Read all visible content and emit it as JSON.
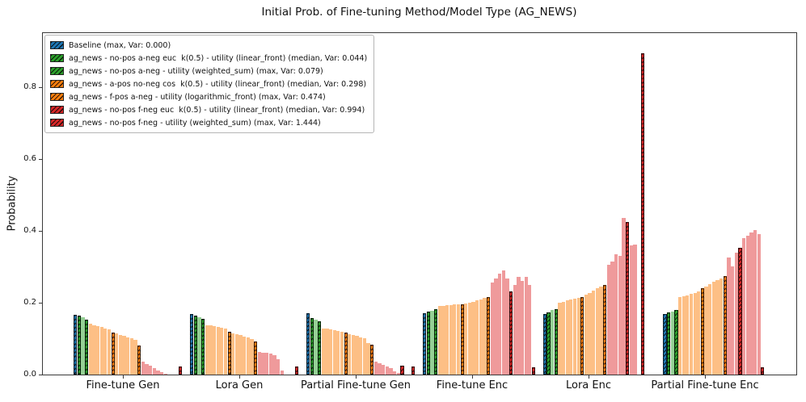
{
  "title": "Initial Prob. of Fine-tuning Method/Model Type (AG_NEWS)",
  "axes": {
    "ylabel": "Probability",
    "yticks": [
      {
        "label": "0.0",
        "value": 0.0
      },
      {
        "label": "0.2",
        "value": 0.2
      },
      {
        "label": "0.4",
        "value": 0.4
      },
      {
        "label": "0.6",
        "value": 0.6
      },
      {
        "label": "0.8",
        "value": 0.8
      }
    ]
  },
  "colors": {
    "blue": "#1f77b4",
    "green": "#2ca02c",
    "green_light": "#95d095",
    "orange": "#ff7f0e",
    "orange_light": "#fdbf85",
    "red": "#d62728",
    "red_light": "#ef9a9b",
    "spine": "#3a3a3a"
  },
  "legend": {
    "items": [
      {
        "label": "Baseline (max, Var: 0.000)",
        "color": "#1f77b4",
        "hatch": "///"
      },
      {
        "label": "ag_news - no-pos a-neg euc  k(0.5) - utility (linear_front) (median, Var: 0.044)",
        "color": "#2ca02c",
        "hatch": "///"
      },
      {
        "label": "ag_news - no-pos a-neg - utility (weighted_sum) (max, Var: 0.079)",
        "color": "#2ca02c",
        "hatch": "///"
      },
      {
        "label": "ag_news - a-pos no-neg cos  k(0.5) - utility (linear_front) (median, Var: 0.298)",
        "color": "#ff7f0e",
        "hatch": "///"
      },
      {
        "label": "ag_news - f-pos a-neg - utility (logarithmic_front) (max, Var: 0.474)",
        "color": "#ff7f0e",
        "hatch": "///"
      },
      {
        "label": "ag_news - no-pos f-neg euc  k(0.5) - utility (linear_front) (median, Var: 0.994)",
        "color": "#d62728",
        "hatch": "///"
      },
      {
        "label": "ag_news - no-pos f-neg - utility (weighted_sum) (max, Var: 1.444)",
        "color": "#d62728",
        "hatch": "///"
      }
    ],
    "position": "upper left"
  },
  "chart_data": {
    "type": "bar",
    "title": "Initial Prob. of Fine-tuning Method/Model Type (AG_NEWS)",
    "xlabel": "",
    "ylabel": "Probability",
    "ylim": [
      0,
      0.953
    ],
    "grid": false,
    "legend_position": "upper left",
    "bar_key_legend": {
      "B": "baseline (blue, hatched)",
      "Gh": "a-neg highlighted run (green, hatched)",
      "G": "a-neg run (light green)",
      "Oh": "a-pos/f-pos highlighted run (orange, hatched)",
      "O": "a-pos/f-pos run (light orange)",
      "Rh": "f-neg highlighted run (red, hatched)",
      "P": "f-neg run (light red)",
      "Z": "empty slot (probability ~0)"
    },
    "categories": [
      "Fine-tune Gen",
      "Lora Gen",
      "Partial Fine-tune Gen",
      "Fine-tune Enc",
      "Lora Enc",
      "Partial Fine-tune Enc"
    ],
    "groups": [
      {
        "category": "Fine-tune Gen",
        "bars": [
          [
            "B",
            0.167
          ],
          [
            "Gh",
            0.164
          ],
          [
            "G",
            0.16
          ],
          [
            "Gh",
            0.152
          ],
          [
            "O",
            0.141
          ],
          [
            "O",
            0.138
          ],
          [
            "O",
            0.135
          ],
          [
            "O",
            0.132
          ],
          [
            "O",
            0.129
          ],
          [
            "O",
            0.126
          ],
          [
            "Oh",
            0.117
          ],
          [
            "O",
            0.114
          ],
          [
            "O",
            0.111
          ],
          [
            "O",
            0.108
          ],
          [
            "O",
            0.104
          ],
          [
            "O",
            0.1
          ],
          [
            "O",
            0.097
          ],
          [
            "Oh",
            0.081
          ],
          [
            "P",
            0.035
          ],
          [
            "P",
            0.03
          ],
          [
            "P",
            0.024
          ],
          [
            "P",
            0.018
          ],
          [
            "P",
            0.012
          ],
          [
            "P",
            0.006
          ],
          [
            "P",
            0.002
          ],
          [
            "Z",
            0
          ],
          [
            "Z",
            0
          ],
          [
            "Z",
            0
          ],
          [
            "Rh",
            0.022
          ],
          [
            "Z",
            0
          ]
        ]
      },
      {
        "category": "Lora Gen",
        "bars": [
          [
            "B",
            0.168
          ],
          [
            "Gh",
            0.165
          ],
          [
            "G",
            0.16
          ],
          [
            "Gh",
            0.154
          ],
          [
            "O",
            0.138
          ],
          [
            "O",
            0.136
          ],
          [
            "O",
            0.134
          ],
          [
            "O",
            0.132
          ],
          [
            "O",
            0.13
          ],
          [
            "O",
            0.128
          ],
          [
            "Oh",
            0.118
          ],
          [
            "O",
            0.115
          ],
          [
            "O",
            0.112
          ],
          [
            "O",
            0.109
          ],
          [
            "O",
            0.106
          ],
          [
            "O",
            0.103
          ],
          [
            "O",
            0.099
          ],
          [
            "Oh",
            0.093
          ],
          [
            "P",
            0.062
          ],
          [
            "P",
            0.061
          ],
          [
            "P",
            0.06
          ],
          [
            "P",
            0.059
          ],
          [
            "P",
            0.055
          ],
          [
            "P",
            0.043
          ],
          [
            "P",
            0.012
          ],
          [
            "Z",
            0
          ],
          [
            "Z",
            0
          ],
          [
            "Z",
            0
          ],
          [
            "Rh",
            0.022
          ],
          [
            "Z",
            0
          ]
        ]
      },
      {
        "category": "Partial Fine-tune Gen",
        "bars": [
          [
            "B",
            0.17
          ],
          [
            "Gh",
            0.157
          ],
          [
            "G",
            0.153
          ],
          [
            "Gh",
            0.148
          ],
          [
            "O",
            0.129
          ],
          [
            "O",
            0.127
          ],
          [
            "O",
            0.125
          ],
          [
            "O",
            0.123
          ],
          [
            "O",
            0.121
          ],
          [
            "O",
            0.119
          ],
          [
            "Oh",
            0.116
          ],
          [
            "O",
            0.113
          ],
          [
            "O",
            0.11
          ],
          [
            "O",
            0.107
          ],
          [
            "O",
            0.104
          ],
          [
            "O",
            0.1
          ],
          [
            "O",
            0.088
          ],
          [
            "Oh",
            0.084
          ],
          [
            "P",
            0.035
          ],
          [
            "P",
            0.031
          ],
          [
            "P",
            0.027
          ],
          [
            "P",
            0.022
          ],
          [
            "P",
            0.017
          ],
          [
            "P",
            0.01
          ],
          [
            "P",
            0.004
          ],
          [
            "Rh",
            0.025
          ],
          [
            "Z",
            0
          ],
          [
            "Z",
            0
          ],
          [
            "Rh",
            0.022
          ],
          [
            "Z",
            0
          ]
        ]
      },
      {
        "category": "Fine-tune Enc",
        "bars": [
          [
            "B",
            0.17
          ],
          [
            "Gh",
            0.175
          ],
          [
            "G",
            0.177
          ],
          [
            "Gh",
            0.181
          ],
          [
            "O",
            0.19
          ],
          [
            "O",
            0.191
          ],
          [
            "O",
            0.193
          ],
          [
            "O",
            0.194
          ],
          [
            "O",
            0.195
          ],
          [
            "O",
            0.196
          ],
          [
            "Oh",
            0.196
          ],
          [
            "O",
            0.198
          ],
          [
            "O",
            0.2
          ],
          [
            "O",
            0.203
          ],
          [
            "O",
            0.206
          ],
          [
            "O",
            0.21
          ],
          [
            "O",
            0.214
          ],
          [
            "Oh",
            0.216
          ],
          [
            "P",
            0.256
          ],
          [
            "P",
            0.267
          ],
          [
            "P",
            0.282
          ],
          [
            "P",
            0.291
          ],
          [
            "P",
            0.267
          ],
          [
            "Rh",
            0.231
          ],
          [
            "P",
            0.249
          ],
          [
            "P",
            0.271
          ],
          [
            "P",
            0.26
          ],
          [
            "P",
            0.271
          ],
          [
            "P",
            0.249
          ],
          [
            "Rh",
            0.02
          ]
        ]
      },
      {
        "category": "Lora Enc",
        "bars": [
          [
            "Z",
            0
          ],
          [
            "B",
            0.168
          ],
          [
            "Gh",
            0.174
          ],
          [
            "G",
            0.179
          ],
          [
            "Gh",
            0.183
          ],
          [
            "O",
            0.2
          ],
          [
            "O",
            0.203
          ],
          [
            "O",
            0.206
          ],
          [
            "O",
            0.209
          ],
          [
            "O",
            0.212
          ],
          [
            "O",
            0.214
          ],
          [
            "Oh",
            0.215
          ],
          [
            "O",
            0.222
          ],
          [
            "O",
            0.228
          ],
          [
            "O",
            0.234
          ],
          [
            "O",
            0.24
          ],
          [
            "O",
            0.244
          ],
          [
            "Oh",
            0.249
          ],
          [
            "P",
            0.305
          ],
          [
            "P",
            0.315
          ],
          [
            "P",
            0.335
          ],
          [
            "P",
            0.33
          ],
          [
            "P",
            0.436
          ],
          [
            "Rh",
            0.425
          ],
          [
            "P",
            0.36
          ],
          [
            "P",
            0.362
          ],
          [
            "Z",
            0
          ],
          [
            "Rh",
            0.895
          ],
          [
            "Z",
            0
          ],
          [
            "Z",
            0
          ]
        ]
      },
      {
        "category": "Partial Fine-tune Enc",
        "bars": [
          [
            "Z",
            0
          ],
          [
            "Z",
            0
          ],
          [
            "B",
            0.168
          ],
          [
            "Gh",
            0.172
          ],
          [
            "G",
            0.176
          ],
          [
            "Gh",
            0.179
          ],
          [
            "O",
            0.215
          ],
          [
            "O",
            0.218
          ],
          [
            "O",
            0.221
          ],
          [
            "O",
            0.225
          ],
          [
            "O",
            0.228
          ],
          [
            "O",
            0.232
          ],
          [
            "Oh",
            0.24
          ],
          [
            "O",
            0.246
          ],
          [
            "O",
            0.252
          ],
          [
            "O",
            0.258
          ],
          [
            "O",
            0.263
          ],
          [
            "O",
            0.268
          ],
          [
            "Oh",
            0.275
          ],
          [
            "P",
            0.325
          ],
          [
            "P",
            0.3
          ],
          [
            "P",
            0.34
          ],
          [
            "Rh",
            0.352
          ],
          [
            "P",
            0.38
          ],
          [
            "P",
            0.387
          ],
          [
            "P",
            0.395
          ],
          [
            "P",
            0.402
          ],
          [
            "P",
            0.39
          ],
          [
            "Rh",
            0.02
          ],
          [
            "Z",
            0
          ]
        ]
      }
    ]
  }
}
